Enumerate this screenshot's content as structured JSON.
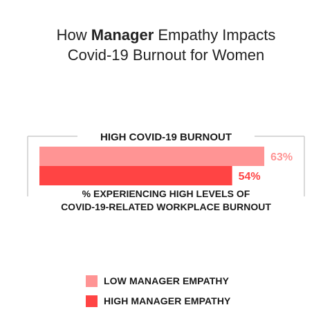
{
  "title": {
    "line1_pre": "How ",
    "line1_bold": "Manager",
    "line1_post": " Empathy Impacts",
    "line2": "Covid-19 Burnout for Women"
  },
  "colors": {
    "low": "#ff9494",
    "high": "#ff4444",
    "frame": "#cccccc"
  },
  "chart_data": {
    "type": "bar",
    "orientation": "horizontal",
    "title": "HIGH COVID-19 BURNOUT",
    "xlabel": "% EXPERIENCING HIGH LEVELS OF COVID-19-RELATED WORKPLACE BURNOUT",
    "xlabel_lines": [
      "% EXPERIENCING HIGH LEVELS OF",
      "COVID-19-RELATED WORKPLACE BURNOUT"
    ],
    "xlim": [
      0,
      100
    ],
    "grid": false,
    "legend_position": "bottom",
    "series": [
      {
        "name": "LOW MANAGER EMPATHY",
        "values": [
          63
        ],
        "labels": [
          "63%"
        ],
        "color": "#ff9494"
      },
      {
        "name": "HIGH MANAGER EMPATHY",
        "values": [
          54
        ],
        "labels": [
          "54%"
        ],
        "color": "#ff4444"
      }
    ]
  }
}
